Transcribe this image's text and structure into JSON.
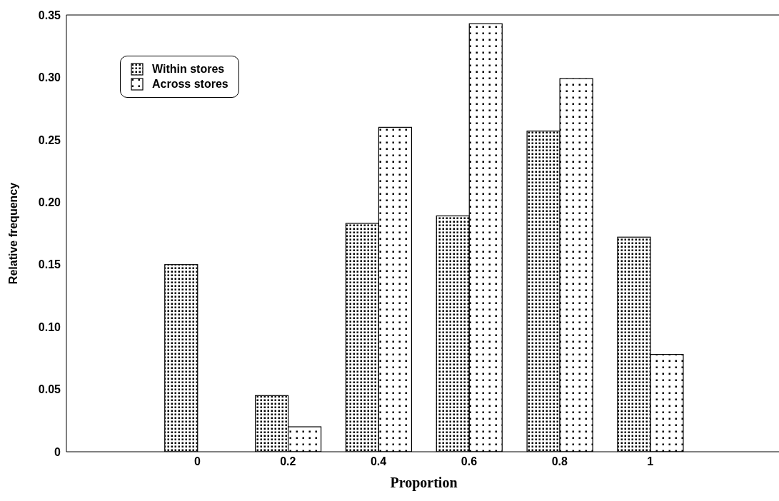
{
  "chart_data": {
    "type": "bar",
    "xlabel": "Proportion",
    "ylabel": "Relative frequency",
    "categories": [
      "0",
      "0.2",
      "0.4",
      "0.6",
      "0.8",
      "1"
    ],
    "series": [
      {
        "name": "Within stores",
        "color": "#000000",
        "values": [
          0.15,
          0.045,
          0.183,
          0.189,
          0.257,
          0.172
        ]
      },
      {
        "name": "Across stores",
        "color": "#000000",
        "values": [
          0,
          0.02,
          0.26,
          0.343,
          0.299,
          0.078
        ]
      }
    ],
    "ylim": [
      0,
      0.35
    ],
    "yticks": [
      0,
      0.05,
      {
        "value": 0.1,
        "label": "0.10"
      },
      0.15,
      {
        "value": 0.2,
        "label": "0.20"
      },
      0.25,
      {
        "value": 0.3,
        "label": "0.30"
      },
      0.35
    ],
    "legend": "top left"
  }
}
